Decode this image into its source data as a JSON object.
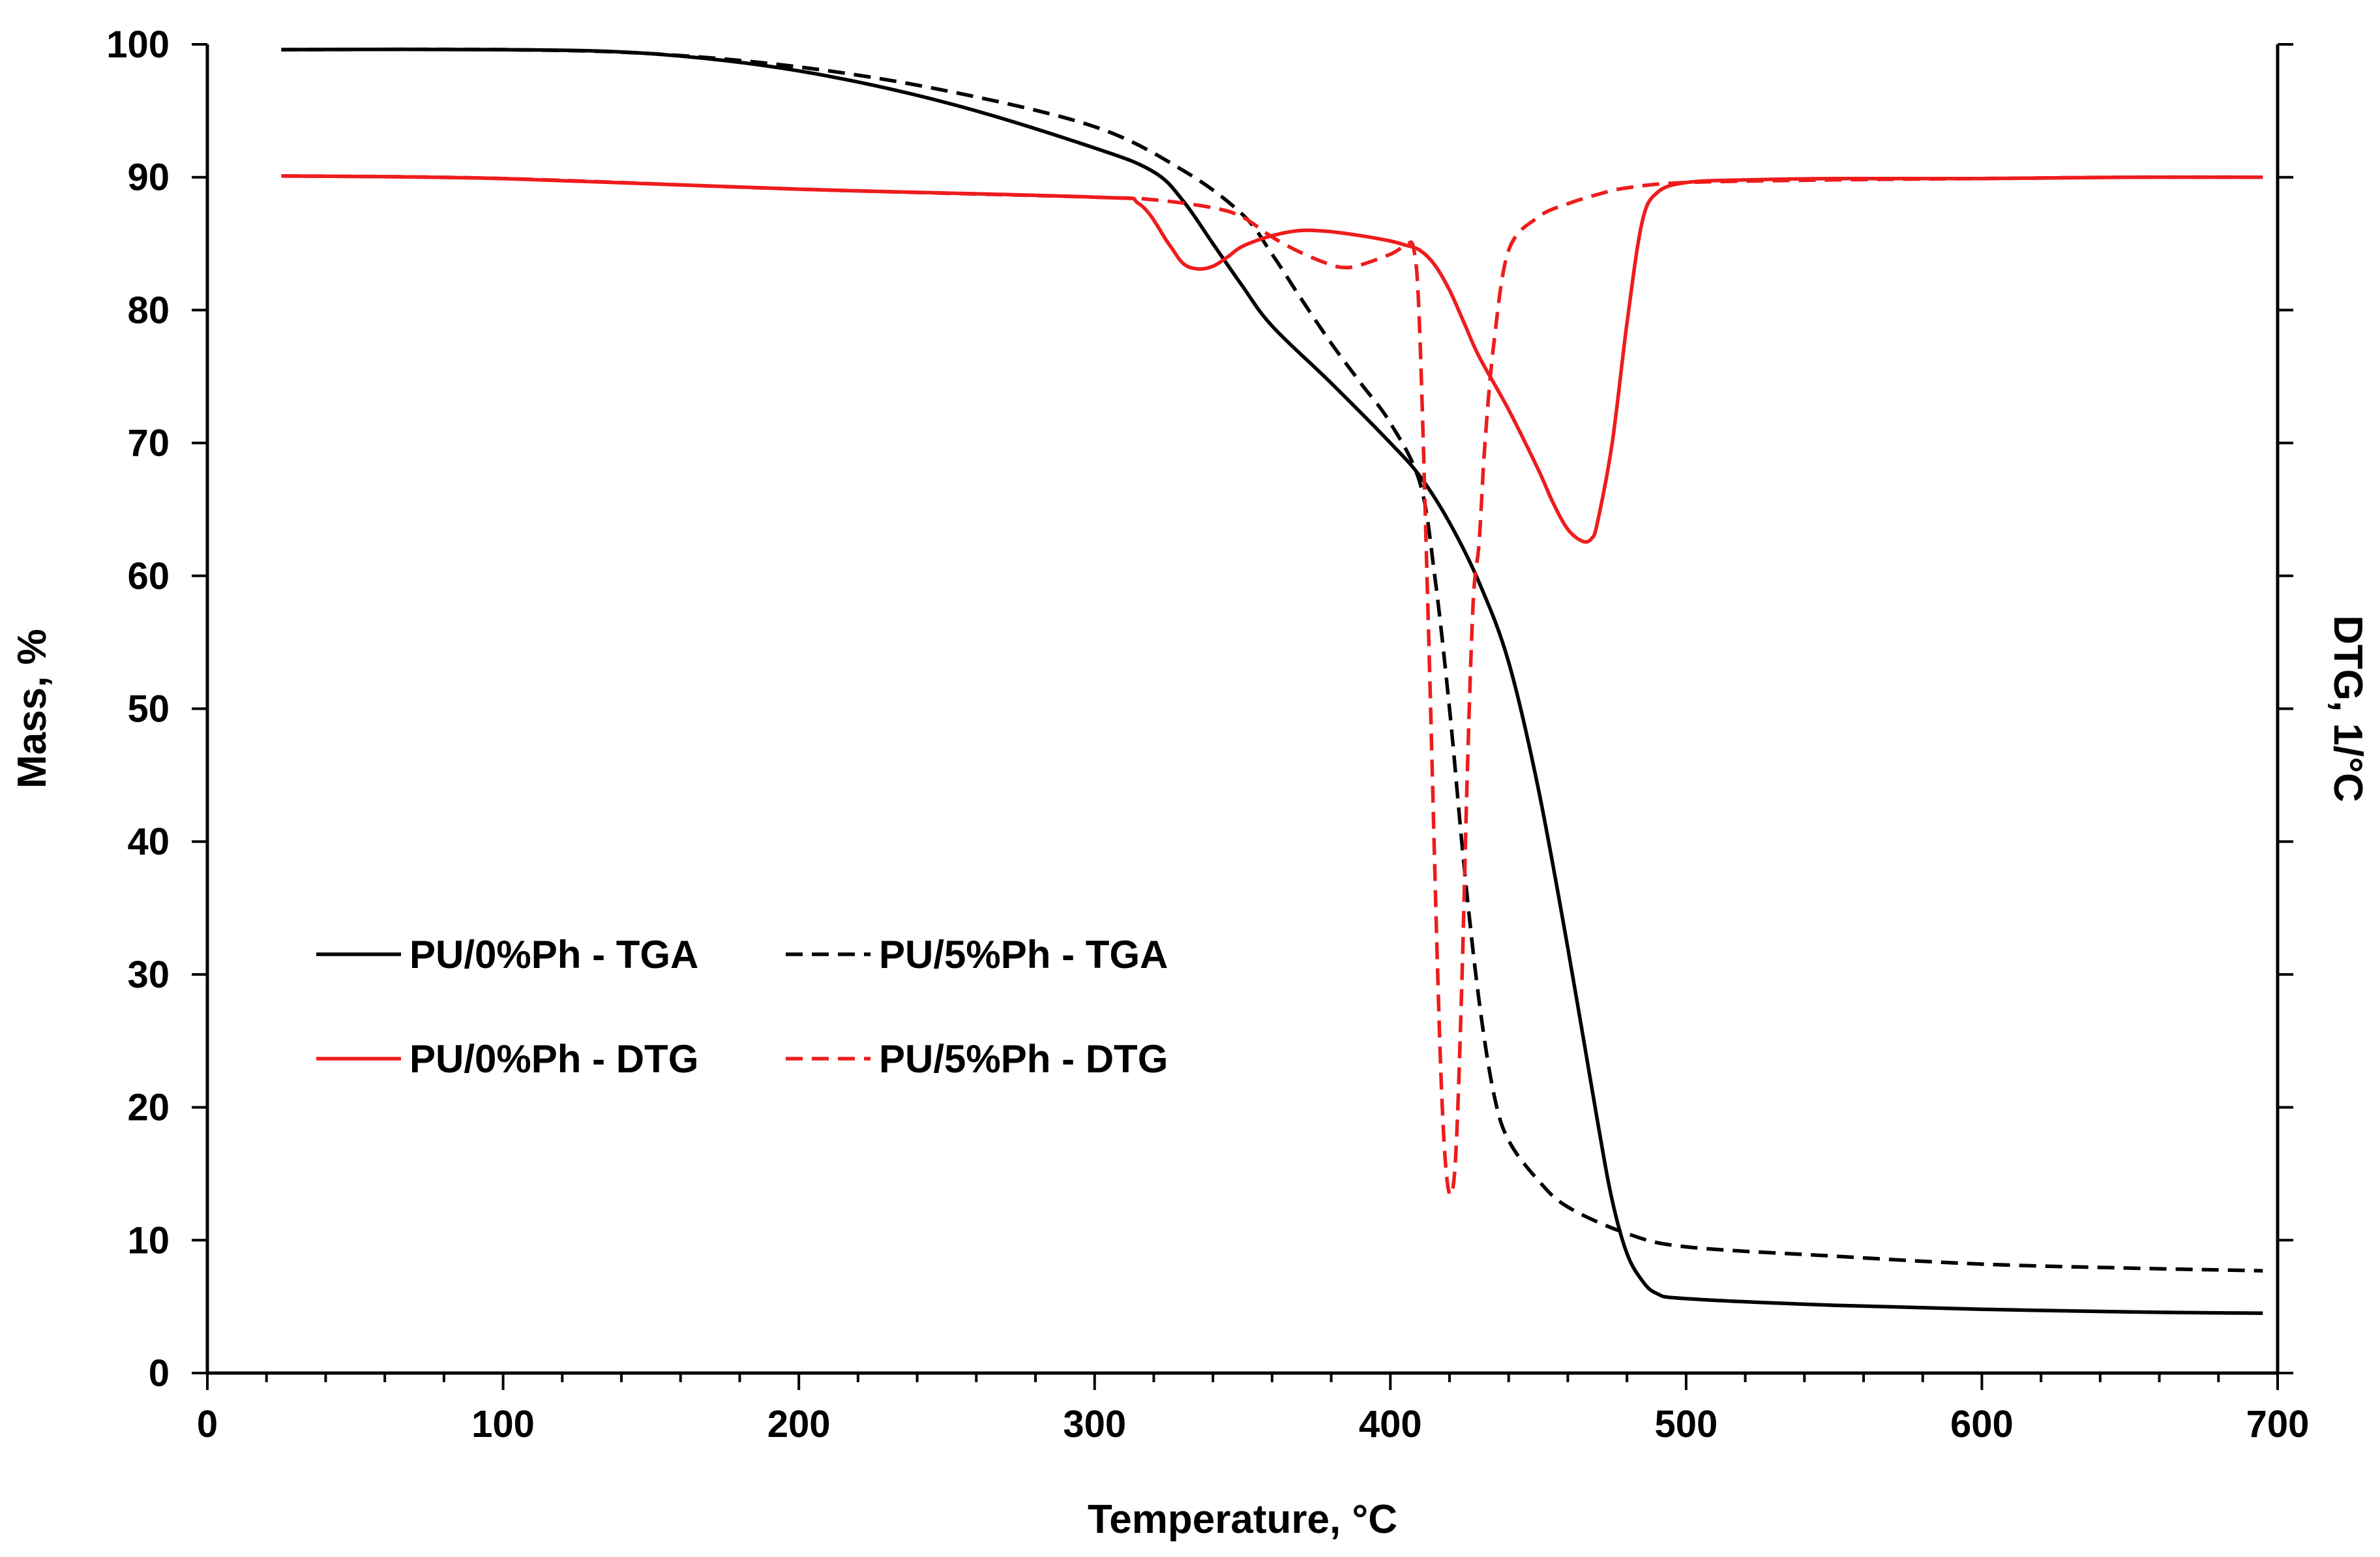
{
  "chart_data": {
    "type": "line",
    "title": "",
    "xlabel": "Temperature, ",
    "xlabel_unit": "°C",
    "ylabel": "Mass, %",
    "y2label": "DTG, 1/°C",
    "xlim": [
      0,
      700
    ],
    "ylim": [
      0,
      100
    ],
    "x_ticks": [
      0,
      100,
      200,
      300,
      400,
      500,
      600,
      700
    ],
    "y_ticks": [
      0,
      10,
      20,
      30,
      40,
      50,
      60,
      70,
      80,
      90,
      100
    ],
    "x_tick_labels": [
      "0",
      "100",
      "200",
      "300",
      "400",
      "500",
      "600",
      "700"
    ],
    "y_tick_labels": [
      "0",
      "10",
      "20",
      "30",
      "40",
      "50",
      "60",
      "70",
      "80",
      "90",
      "100"
    ],
    "grid": false,
    "legend_position": "lower-left",
    "series": [
      {
        "name": "PU/0%Ph - TGA",
        "color": "#000000",
        "dash": "solid",
        "x": [
          25,
          100,
          150,
          200,
          250,
          300,
          320,
          330,
          340,
          350,
          360,
          380,
          400,
          410,
          420,
          430,
          440,
          450,
          460,
          470,
          475,
          480,
          485,
          490,
          500,
          550,
          600,
          650,
          695
        ],
        "y": [
          99.6,
          99.6,
          99.3,
          98.0,
          95.6,
          92.2,
          90.4,
          88.2,
          85.0,
          81.8,
          78.8,
          74.5,
          70.0,
          67.5,
          64.0,
          59.5,
          53.5,
          44.0,
          32.0,
          19.0,
          13.0,
          9.0,
          7.0,
          6.0,
          5.6,
          5.1,
          4.8,
          4.6,
          4.5
        ]
      },
      {
        "name": "PU/5%Ph - TGA",
        "color": "#000000",
        "dash": "dashed",
        "x": [
          25,
          100,
          150,
          200,
          250,
          300,
          330,
          350,
          360,
          370,
          380,
          390,
          400,
          410,
          415,
          420,
          425,
          430,
          435,
          440,
          450,
          460,
          480,
          500,
          550,
          600,
          650,
          695
        ],
        "y": [
          99.6,
          99.6,
          99.3,
          98.3,
          96.5,
          93.8,
          90.5,
          87.2,
          84.2,
          80.8,
          77.5,
          74.5,
          71.5,
          67.0,
          60.0,
          50.0,
          38.0,
          28.0,
          21.0,
          17.5,
          14.5,
          12.5,
          10.5,
          9.5,
          8.8,
          8.2,
          7.9,
          7.7
        ]
      },
      {
        "name": "PU/0%Ph - DTG",
        "color": "#ee1c1c",
        "dash": "solid",
        "x": [
          25,
          100,
          200,
          300,
          315,
          325,
          330,
          335,
          340,
          345,
          350,
          360,
          370,
          380,
          390,
          400,
          405,
          410,
          415,
          420,
          425,
          430,
          440,
          450,
          455,
          460,
          465,
          468,
          470,
          475,
          480,
          485,
          490,
          500,
          520,
          550,
          600,
          650,
          695
        ],
        "y": [
          90.1,
          89.9,
          89.1,
          88.5,
          88.0,
          85.0,
          83.5,
          83.1,
          83.3,
          84.0,
          84.8,
          85.6,
          86.0,
          85.9,
          85.6,
          85.2,
          84.9,
          84.5,
          83.4,
          81.5,
          79.0,
          76.5,
          72.5,
          68.0,
          65.5,
          63.5,
          62.6,
          62.8,
          64.0,
          70.0,
          79.0,
          86.5,
          88.8,
          89.6,
          89.8,
          89.9,
          89.9,
          90.0,
          90.0
        ]
      },
      {
        "name": "PU/5%Ph - DTG",
        "color": "#ee1c1c",
        "dash": "dashed",
        "x": [
          25,
          100,
          200,
          300,
          320,
          340,
          350,
          360,
          370,
          380,
          385,
          390,
          400,
          405,
          408,
          410,
          413,
          416,
          418,
          420,
          422,
          424,
          426,
          428,
          430,
          432,
          435,
          440,
          450,
          460,
          470,
          480,
          500,
          550,
          600,
          650,
          695
        ],
        "y": [
          90.1,
          89.9,
          89.1,
          88.5,
          88.3,
          87.7,
          87.0,
          85.5,
          84.3,
          83.4,
          83.2,
          83.4,
          84.2,
          84.8,
          84.5,
          78.0,
          55.0,
          30.0,
          18.0,
          13.5,
          16.0,
          28.0,
          45.0,
          58.0,
          62.5,
          70.0,
          77.5,
          84.5,
          87.0,
          88.0,
          88.7,
          89.2,
          89.6,
          89.8,
          89.9,
          90.0,
          90.0
        ]
      }
    ]
  }
}
